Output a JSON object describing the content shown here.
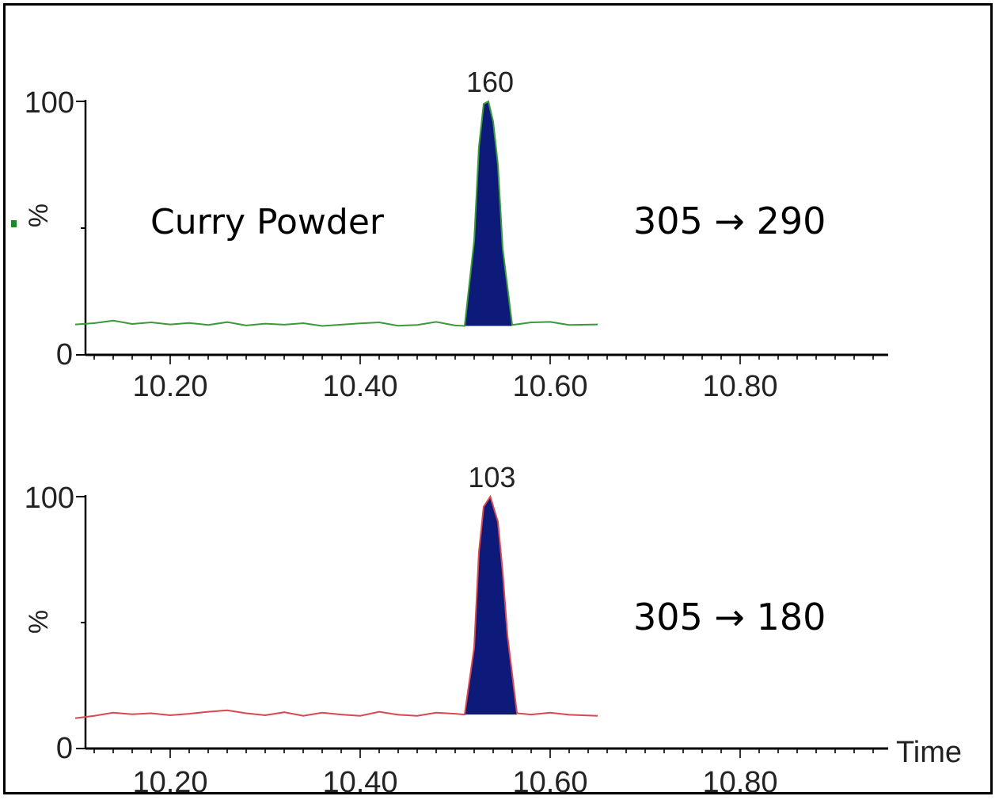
{
  "chart_data": [
    {
      "type": "line",
      "panel": "top",
      "ylabel": "%",
      "xlabel": "",
      "ytick_labels": [
        "0",
        "100"
      ],
      "xtick_labels": [
        "10.20",
        "10.40",
        "10.60",
        "10.80"
      ],
      "xlim": [
        10.1,
        10.95
      ],
      "ylim": [
        0,
        100
      ],
      "sample_label": "Curry Powder",
      "transition_label": "305 → 290",
      "peak": {
        "x": 10.535,
        "y": 100,
        "label": "160",
        "fill_start": 10.51,
        "fill_end": 10.56,
        "fill_color": "#0d1a7a"
      },
      "trace_color": "#3a9a3a",
      "series": [
        {
          "x": [
            10.1,
            10.12,
            10.14,
            10.16,
            10.18,
            10.2,
            10.22,
            10.24,
            10.26,
            10.28,
            10.3,
            10.32,
            10.34,
            10.36,
            10.38,
            10.4,
            10.42,
            10.44,
            10.46,
            10.48,
            10.5,
            10.51,
            10.52,
            10.525,
            10.53,
            10.535,
            10.54,
            10.545,
            10.55,
            10.56,
            10.58,
            10.6,
            10.62,
            10.65
          ],
          "values": [
            12,
            12.5,
            13.5,
            12.2,
            12.8,
            12.0,
            12.6,
            11.8,
            12.9,
            11.6,
            12.3,
            11.9,
            12.5,
            11.4,
            11.9,
            12.4,
            12.8,
            11.5,
            11.8,
            13.0,
            11.6,
            11.4,
            45,
            82,
            99,
            100,
            92,
            75,
            42,
            11.8,
            12.8,
            13.0,
            11.8,
            12.0
          ]
        }
      ]
    },
    {
      "type": "line",
      "panel": "bottom",
      "ylabel": "%",
      "xlabel": "Time",
      "ytick_labels": [
        "0",
        "100"
      ],
      "xtick_labels": [
        "10.20",
        "10.40",
        "10.60",
        "10.80"
      ],
      "xlim": [
        10.1,
        10.95
      ],
      "ylim": [
        0,
        100
      ],
      "transition_label": "305 → 180",
      "peak": {
        "x": 10.537,
        "y": 100,
        "label": "103",
        "fill_start": 10.51,
        "fill_end": 10.565,
        "fill_color": "#0d1a7a"
      },
      "trace_color": "#d9474f",
      "series": [
        {
          "x": [
            10.1,
            10.12,
            10.14,
            10.16,
            10.18,
            10.2,
            10.22,
            10.24,
            10.26,
            10.28,
            10.3,
            10.32,
            10.34,
            10.36,
            10.38,
            10.4,
            10.42,
            10.44,
            10.46,
            10.48,
            10.5,
            10.51,
            10.52,
            10.525,
            10.53,
            10.537,
            10.545,
            10.55,
            10.555,
            10.565,
            10.58,
            10.6,
            10.62,
            10.65
          ],
          "values": [
            12,
            13.0,
            14.2,
            13.6,
            14.0,
            13.2,
            13.8,
            14.6,
            15.2,
            14.0,
            13.2,
            14.4,
            13.0,
            14.2,
            13.5,
            13.0,
            14.6,
            13.4,
            13.0,
            14.2,
            13.8,
            13.5,
            40,
            78,
            96,
            100,
            90,
            70,
            45,
            14.0,
            13.5,
            14.2,
            13.4,
            13.0
          ]
        }
      ]
    }
  ]
}
